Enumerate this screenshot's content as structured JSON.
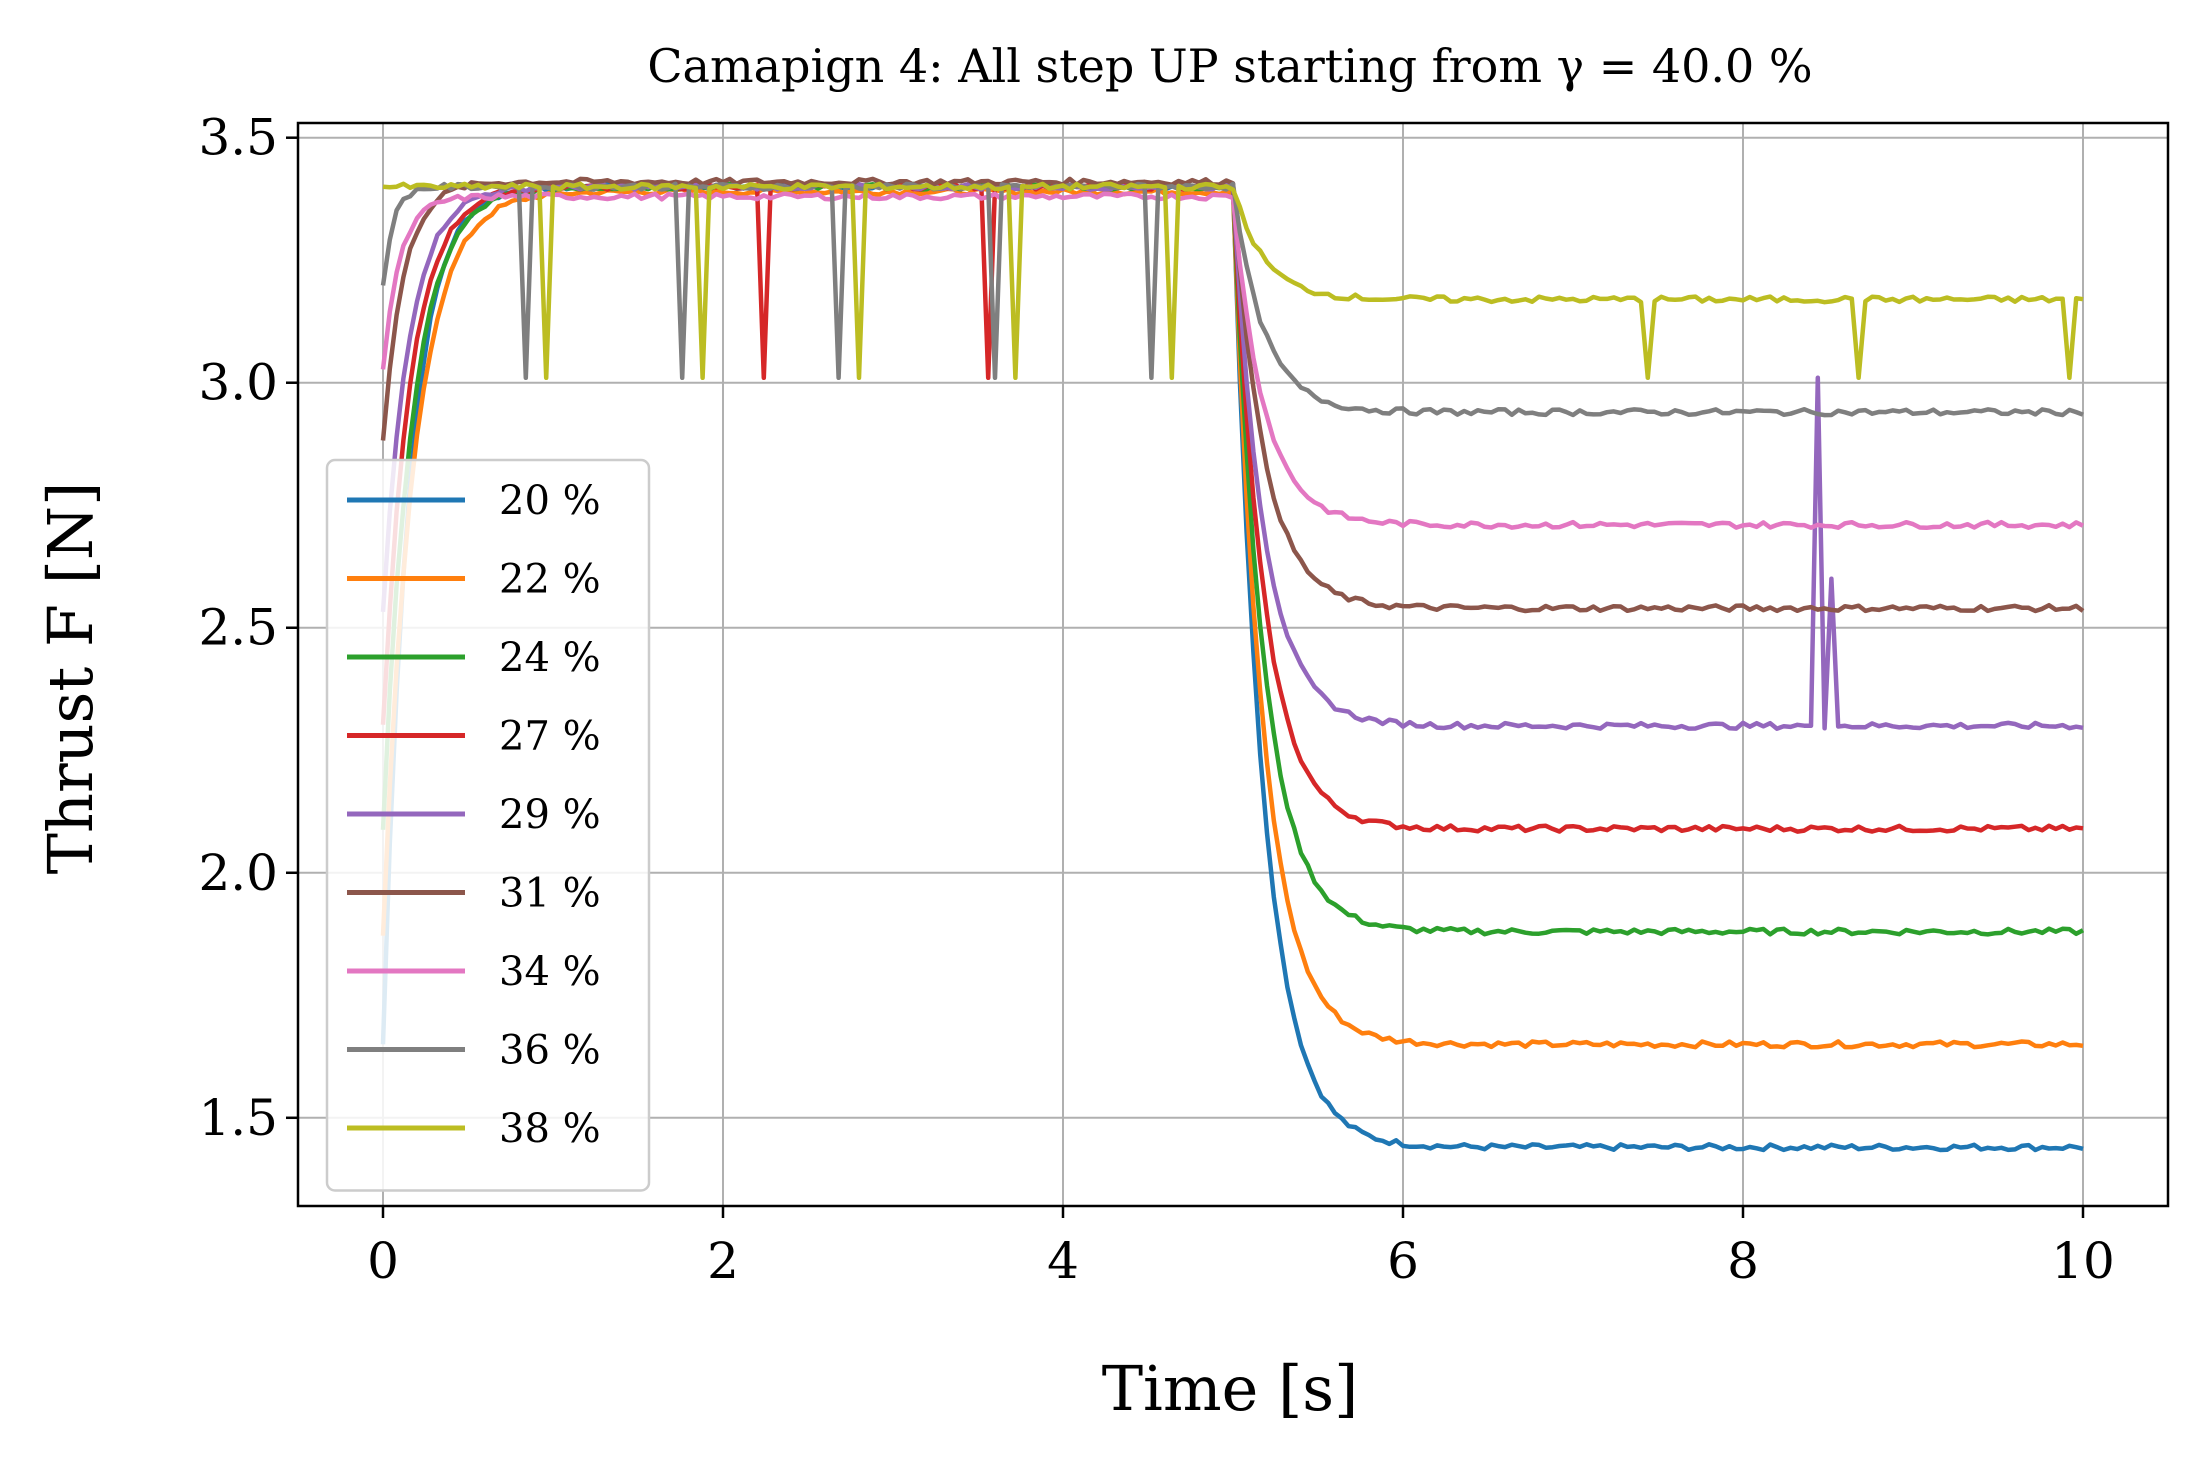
{
  "chart_data": {
    "type": "line",
    "title": "Camapign 4: All step UP starting from γ = 40.0 %",
    "xlabel": "Time [s]",
    "ylabel": "Thrust F [N]",
    "xlim": [
      -0.5,
      10.5
    ],
    "ylim": [
      1.32,
      3.53
    ],
    "xticks": [
      0,
      2,
      4,
      6,
      8,
      10
    ],
    "yticks": [
      1.5,
      2.0,
      2.5,
      3.0,
      3.5
    ],
    "grid": true,
    "legend_position": "lower-left",
    "series": [
      {
        "name": "20 %",
        "color": "#1f77b4",
        "start": 1.65,
        "plateau": 3.4,
        "final": 1.44,
        "tau": 0.15
      },
      {
        "name": "22 %",
        "color": "#ff7f0e",
        "start": 1.87,
        "plateau": 3.39,
        "final": 1.65,
        "tau": 0.18
      },
      {
        "name": "24 %",
        "color": "#2ca02c",
        "start": 2.09,
        "plateau": 3.4,
        "final": 1.88,
        "tau": 0.17
      },
      {
        "name": "27 %",
        "color": "#d62728",
        "start": 2.3,
        "plateau": 3.4,
        "final": 2.09,
        "tau": 0.16,
        "dips": [
          [
            2.25,
            3.01
          ],
          [
            3.55,
            3.01
          ]
        ]
      },
      {
        "name": "29 %",
        "color": "#9467bd",
        "start": 2.53,
        "plateau": 3.4,
        "final": 2.3,
        "tau": 0.15,
        "spikes": [
          [
            8.38,
            2.3
          ],
          [
            8.42,
            3.01
          ],
          [
            8.5,
            2.6
          ],
          [
            8.58,
            2.3
          ]
        ]
      },
      {
        "name": "31 %",
        "color": "#8c564b",
        "start": 2.88,
        "plateau": 3.41,
        "final": 2.54,
        "tau": 0.12
      },
      {
        "name": "34 %",
        "color": "#e377c2",
        "start": 3.03,
        "plateau": 3.38,
        "final": 2.71,
        "tau": 0.1
      },
      {
        "name": "36 %",
        "color": "#7f7f7f",
        "start": 3.2,
        "plateau": 3.4,
        "final": 2.94,
        "tau": 0.06
      },
      {
        "name": "38 %",
        "color": "#bcbd22",
        "start": 3.4,
        "plateau": 3.4,
        "final": 3.17,
        "tau": 0.05
      }
    ]
  }
}
